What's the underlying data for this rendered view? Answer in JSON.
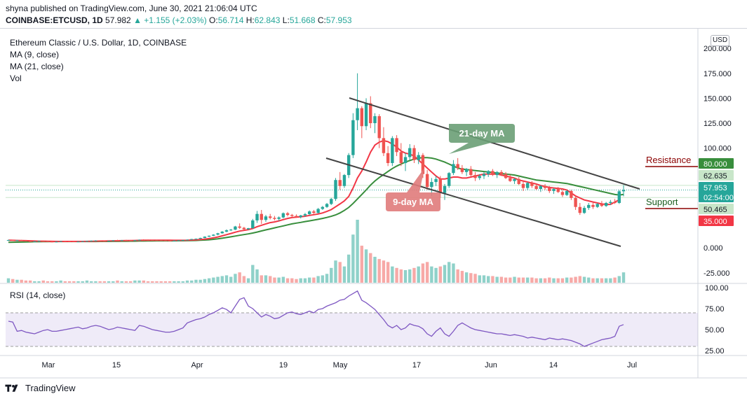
{
  "header": {
    "publish_line": "shyna published on TradingView.com, June 30, 2021 21:06:04 UTC",
    "symbol": "COINBASE:ETCUSD, 1D",
    "last": "57.982",
    "change": "▲ +1.155 (+2.03%)",
    "o_label": "O:",
    "o": "56.714",
    "h_label": "H:",
    "h": "62.843",
    "l_label": "L:",
    "l": "51.668",
    "c_label": "C:",
    "c": "57.953"
  },
  "legend": {
    "title": "Ethereum Classic / U.S. Dollar, 1D, COINBASE",
    "ma9": "MA (9, close)",
    "ma21": "MA (21, close)",
    "vol": "Vol"
  },
  "currency": "USD",
  "rsi_legend": "RSI (14, close)",
  "footer": {
    "brand": "TradingView"
  },
  "annotations": {
    "ma21_label": "21-day MA",
    "ma9_label": "9-day MA",
    "resistance": "Resistance",
    "support": "Support"
  },
  "colors": {
    "up": "#26a69a",
    "down": "#ef5350",
    "ma9": "#f23645",
    "ma21": "#388e3c",
    "rsi": "#7e57c2",
    "rsi_band": "#7e57c2",
    "ma21_box": "#6a9e76",
    "ma9_box": "#e07b7b",
    "resistance": "#8b0000",
    "support": "#1b5e20"
  },
  "chart_data": {
    "type": "candlestick",
    "price_axis": {
      "range": [
        -35,
        205
      ],
      "ticks": [
        "200.000",
        "175.000",
        "150.000",
        "125.000",
        "100.000",
        "75.000",
        "50.000",
        "25.000",
        "0.000",
        "-25.000"
      ]
    },
    "price_labels": [
      {
        "text": "80.000",
        "value": 80,
        "color": "#388e3c"
      },
      {
        "text": "62.635",
        "value": 62.635,
        "color": "#c8e6c9",
        "dark_text": true
      },
      {
        "text": "57.953",
        "value": 57.953,
        "color": "#26a69a"
      },
      {
        "text": "02:54:00",
        "value": 53.0,
        "color": "#26a69a"
      },
      {
        "text": "50.465",
        "value": 50.465,
        "color": "#c8e6c9",
        "dark_text": true
      },
      {
        "text": "35.000",
        "value": 35,
        "color": "#f23645"
      }
    ],
    "x_ticks": [
      "Mar",
      "15",
      "Apr",
      "19",
      "May",
      "17",
      "Jun",
      "14",
      "Jul"
    ],
    "rsi_axis": {
      "range": [
        20,
        105
      ],
      "ticks": [
        "100.00",
        "75.00",
        "50.00",
        "25.00"
      ],
      "band": [
        30,
        70
      ]
    },
    "ohlc": [
      [
        7.5,
        8.2,
        7.0,
        7.8
      ],
      [
        7.8,
        8.1,
        7.2,
        7.4
      ],
      [
        7.4,
        7.9,
        6.8,
        7.6
      ],
      [
        7.6,
        8.0,
        7.1,
        7.3
      ],
      [
        7.3,
        7.6,
        6.4,
        6.7
      ],
      [
        6.7,
        7.1,
        6.0,
        6.3
      ],
      [
        6.3,
        6.8,
        5.8,
        6.5
      ],
      [
        6.5,
        7.2,
        6.2,
        6.9
      ],
      [
        6.9,
        7.3,
        6.5,
        6.8
      ],
      [
        6.8,
        7.0,
        6.1,
        6.2
      ],
      [
        6.2,
        6.6,
        5.6,
        6.0
      ],
      [
        6.0,
        6.4,
        5.5,
        6.2
      ],
      [
        6.2,
        6.9,
        6.0,
        6.7
      ],
      [
        6.7,
        7.0,
        6.3,
        6.5
      ],
      [
        6.5,
        6.8,
        6.0,
        6.4
      ],
      [
        6.4,
        6.6,
        5.9,
        6.1
      ],
      [
        6.1,
        6.5,
        5.8,
        6.3
      ],
      [
        6.3,
        6.7,
        6.0,
        6.6
      ],
      [
        6.6,
        7.1,
        6.3,
        6.9
      ],
      [
        6.9,
        7.4,
        6.7,
        7.1
      ],
      [
        7.1,
        7.6,
        6.8,
        7.3
      ],
      [
        7.3,
        7.5,
        6.9,
        7.0
      ],
      [
        7.0,
        7.3,
        6.6,
        6.8
      ],
      [
        6.8,
        7.2,
        6.5,
        7.0
      ],
      [
        7.0,
        7.8,
        6.8,
        7.6
      ],
      [
        7.6,
        8.1,
        7.2,
        7.4
      ],
      [
        7.4,
        7.9,
        7.0,
        7.7
      ],
      [
        7.7,
        8.0,
        7.3,
        7.5
      ],
      [
        7.5,
        7.9,
        7.0,
        7.3
      ],
      [
        7.3,
        7.8,
        7.0,
        7.6
      ],
      [
        7.6,
        8.3,
        7.4,
        8.1
      ],
      [
        8.1,
        8.6,
        7.8,
        8.0
      ],
      [
        8.0,
        8.4,
        7.6,
        7.9
      ],
      [
        7.9,
        8.2,
        7.5,
        7.8
      ],
      [
        7.8,
        8.1,
        7.4,
        7.7
      ],
      [
        7.7,
        8.0,
        7.2,
        7.5
      ],
      [
        7.5,
        7.9,
        7.0,
        7.3
      ],
      [
        7.3,
        7.6,
        6.9,
        7.1
      ],
      [
        7.1,
        7.5,
        6.8,
        7.2
      ],
      [
        7.2,
        7.7,
        7.0,
        7.5
      ],
      [
        7.5,
        8.0,
        7.3,
        7.8
      ],
      [
        7.8,
        8.4,
        7.6,
        8.2
      ],
      [
        8.2,
        9.0,
        8.0,
        8.8
      ],
      [
        8.8,
        9.4,
        8.4,
        9.1
      ],
      [
        9.1,
        10.2,
        8.9,
        9.9
      ],
      [
        9.9,
        11.5,
        9.6,
        11.2
      ],
      [
        11.2,
        12.4,
        10.8,
        12.1
      ],
      [
        12.1,
        13.6,
        11.8,
        13.2
      ],
      [
        13.2,
        15.0,
        12.6,
        14.6
      ],
      [
        14.6,
        16.8,
        14.2,
        16.2
      ],
      [
        16.2,
        18.5,
        15.6,
        17.6
      ],
      [
        17.6,
        19.0,
        16.8,
        18.2
      ],
      [
        18.2,
        22.0,
        17.8,
        21.4
      ],
      [
        21.4,
        24.5,
        19.0,
        20.1
      ],
      [
        20.1,
        21.0,
        17.9,
        18.6
      ],
      [
        18.6,
        20.0,
        18.0,
        19.7
      ],
      [
        19.7,
        29.0,
        19.2,
        27.5
      ],
      [
        27.5,
        37.0,
        25.0,
        34.0
      ],
      [
        34.0,
        38.0,
        24.0,
        28.0
      ],
      [
        28.0,
        33.0,
        26.0,
        31.5
      ],
      [
        31.5,
        34.0,
        28.5,
        30.0
      ],
      [
        30.0,
        32.0,
        27.5,
        29.0
      ],
      [
        29.0,
        31.5,
        27.0,
        30.5
      ],
      [
        30.5,
        35.5,
        29.5,
        34.7
      ],
      [
        34.7,
        36.0,
        31.5,
        33.0
      ],
      [
        33.0,
        34.0,
        30.5,
        32.0
      ],
      [
        32.0,
        33.5,
        30.0,
        31.0
      ],
      [
        31.0,
        33.0,
        29.5,
        32.5
      ],
      [
        32.5,
        35.0,
        31.0,
        33.8
      ],
      [
        33.8,
        37.5,
        33.0,
        36.5
      ],
      [
        36.5,
        38.0,
        34.0,
        35.0
      ],
      [
        35.0,
        40.0,
        34.5,
        39.0
      ],
      [
        39.0,
        42.0,
        38.0,
        41.0
      ],
      [
        41.0,
        45.0,
        40.0,
        44.0
      ],
      [
        44.0,
        50.0,
        43.0,
        49.0
      ],
      [
        49.0,
        70.0,
        47.0,
        68.0
      ],
      [
        68.0,
        76.0,
        58.0,
        62.0
      ],
      [
        62.0,
        74.0,
        60.0,
        73.0
      ],
      [
        73.0,
        95.0,
        70.0,
        93.0
      ],
      [
        93.0,
        135.0,
        90.0,
        128.0
      ],
      [
        128.0,
        175.0,
        118.0,
        140.0
      ],
      [
        140.0,
        142.0,
        110.0,
        122.0
      ],
      [
        122.0,
        150.0,
        118.0,
        145.0
      ],
      [
        145.0,
        152.0,
        120.0,
        125.0
      ],
      [
        125.0,
        135.0,
        115.0,
        132.0
      ],
      [
        132.0,
        134.0,
        100.0,
        110.0
      ],
      [
        110.0,
        121.0,
        92.0,
        95.0
      ],
      [
        95.0,
        102.0,
        82.0,
        85.0
      ],
      [
        85.0,
        112.0,
        82.0,
        110.0
      ],
      [
        110.0,
        113.0,
        92.0,
        96.0
      ],
      [
        96.0,
        105.0,
        82.0,
        85.0
      ],
      [
        85.0,
        95.0,
        77.0,
        91.0
      ],
      [
        91.0,
        104.0,
        88.0,
        100.0
      ],
      [
        100.0,
        103.0,
        85.0,
        88.0
      ],
      [
        88.0,
        96.0,
        84.0,
        93.0
      ],
      [
        93.0,
        95.0,
        70.0,
        74.0
      ],
      [
        74.0,
        78.0,
        58.0,
        61.0
      ],
      [
        61.0,
        70.0,
        52.0,
        66.0
      ],
      [
        66.0,
        72.0,
        62.0,
        69.0
      ],
      [
        69.0,
        72.0,
        50.0,
        55.0
      ],
      [
        55.0,
        64.0,
        48.0,
        62.0
      ],
      [
        62.0,
        76.0,
        60.0,
        75.0
      ],
      [
        75.0,
        88.0,
        73.0,
        84.0
      ],
      [
        84.0,
        90.0,
        78.0,
        80.0
      ],
      [
        80.0,
        83.0,
        74.0,
        76.0
      ],
      [
        76.0,
        80.0,
        72.0,
        79.0
      ],
      [
        79.0,
        82.0,
        71.0,
        73.0
      ],
      [
        73.0,
        76.0,
        67.0,
        70.0
      ],
      [
        70.0,
        74.0,
        68.0,
        72.0
      ],
      [
        72.0,
        76.0,
        69.0,
        74.0
      ],
      [
        74.0,
        78.0,
        71.0,
        77.0
      ],
      [
        77.0,
        79.0,
        72.0,
        73.0
      ],
      [
        73.0,
        77.0,
        70.0,
        76.0
      ],
      [
        76.0,
        78.0,
        72.0,
        74.0
      ],
      [
        74.0,
        76.0,
        69.0,
        70.0
      ],
      [
        70.0,
        73.0,
        66.0,
        67.0
      ],
      [
        67.0,
        70.0,
        64.0,
        69.0
      ],
      [
        69.0,
        71.0,
        63.0,
        64.0
      ],
      [
        64.0,
        67.0,
        57.0,
        60.0
      ],
      [
        60.0,
        66.0,
        58.0,
        65.0
      ],
      [
        65.0,
        67.0,
        60.0,
        62.0
      ],
      [
        62.0,
        64.0,
        58.0,
        59.0
      ],
      [
        59.0,
        63.0,
        56.0,
        62.0
      ],
      [
        62.0,
        64.0,
        58.0,
        60.0
      ],
      [
        60.0,
        62.0,
        55.0,
        57.0
      ],
      [
        57.0,
        60.0,
        54.0,
        59.0
      ],
      [
        59.0,
        61.0,
        55.0,
        56.0
      ],
      [
        56.0,
        58.0,
        51.0,
        53.0
      ],
      [
        53.0,
        58.0,
        52.0,
        57.0
      ],
      [
        57.0,
        58.0,
        48.0,
        50.0
      ],
      [
        50.0,
        52.0,
        38.0,
        41.0
      ],
      [
        41.0,
        45.0,
        33.0,
        35.0
      ],
      [
        35.0,
        42.0,
        34.0,
        40.0
      ],
      [
        40.0,
        45.0,
        38.0,
        43.0
      ],
      [
        43.0,
        46.0,
        39.0,
        41.0
      ],
      [
        41.0,
        45.0,
        40.0,
        44.0
      ],
      [
        44.0,
        47.0,
        41.0,
        42.0
      ],
      [
        42.0,
        46.0,
        41.0,
        45.0
      ],
      [
        45.0,
        48.0,
        43.0,
        46.0
      ],
      [
        46.0,
        49.0,
        44.0,
        45.0
      ],
      [
        45.0,
        58.0,
        44.0,
        56.7
      ],
      [
        56.7,
        62.8,
        51.7,
        58.0
      ]
    ],
    "ma9": [
      7.6,
      7.5,
      7.4,
      7.3,
      7.2,
      7.0,
      6.8,
      6.7,
      6.7,
      6.6,
      6.5,
      6.4,
      6.4,
      6.4,
      6.4,
      6.4,
      6.4,
      6.4,
      6.5,
      6.6,
      6.7,
      6.8,
      6.8,
      6.9,
      7.0,
      7.1,
      7.2,
      7.3,
      7.3,
      7.4,
      7.5,
      7.6,
      7.7,
      7.7,
      7.7,
      7.7,
      7.7,
      7.6,
      7.5,
      7.5,
      7.5,
      7.6,
      7.8,
      8.0,
      8.3,
      8.7,
      9.3,
      10.0,
      10.9,
      12.0,
      13.2,
      14.4,
      15.7,
      16.8,
      17.5,
      18.2,
      19.4,
      21.2,
      22.6,
      24.0,
      25.3,
      26.0,
      27.0,
      28.3,
      29.5,
      30.3,
      30.8,
      31.2,
      31.7,
      32.5,
      33.2,
      33.9,
      35.0,
      36.5,
      38.3,
      41.2,
      44.0,
      47.0,
      51.5,
      60.0,
      70.0,
      77.0,
      86.0,
      96.0,
      103.0,
      106.0,
      107.5,
      106.5,
      104.0,
      101.0,
      97.0,
      95.0,
      94.0,
      92.0,
      88.0,
      84.0,
      80.0,
      76.0,
      72.0,
      69.0,
      69.0,
      70.0,
      71.0,
      71.0,
      70.0,
      70.0,
      71.0,
      72.0,
      73.0,
      74.0,
      74.0,
      74.0,
      74.0,
      73.0,
      72.0,
      71.0,
      70.0,
      68.0,
      67.0,
      66.0,
      65.0,
      64.0,
      62.5,
      61.5,
      60.5,
      60.0,
      59.5,
      59.0,
      58.0,
      55.0,
      52.0,
      50.0,
      48.0,
      47.0,
      46.0,
      45.0,
      44.0,
      43.5,
      43.5,
      46.0,
      48.0
    ],
    "ma21": [
      5.5,
      5.6,
      5.7,
      5.8,
      5.9,
      6.0,
      6.1,
      6.1,
      6.2,
      6.2,
      6.3,
      6.3,
      6.3,
      6.3,
      6.3,
      6.3,
      6.3,
      6.3,
      6.3,
      6.3,
      6.3,
      6.4,
      6.4,
      6.4,
      6.5,
      6.5,
      6.6,
      6.6,
      6.7,
      6.7,
      6.8,
      6.8,
      6.9,
      6.9,
      7.0,
      7.0,
      7.0,
      7.0,
      7.0,
      7.1,
      7.1,
      7.2,
      7.3,
      7.4,
      7.6,
      7.8,
      8.1,
      8.5,
      9.0,
      9.6,
      10.3,
      11.0,
      11.8,
      12.6,
      13.3,
      14.0,
      14.8,
      15.8,
      16.9,
      18.0,
      19.0,
      20.0,
      21.0,
      22.0,
      23.0,
      24.0,
      24.8,
      25.5,
      26.3,
      27.0,
      27.8,
      28.6,
      29.5,
      30.5,
      31.6,
      33.0,
      35.0,
      37.5,
      40.5,
      44.5,
      49.0,
      53.5,
      58.0,
      63.0,
      67.0,
      70.5,
      73.5,
      76.5,
      79.5,
      82.0,
      84.0,
      86.0,
      87.5,
      89.0,
      90.0,
      90.5,
      90.5,
      90.0,
      89.0,
      87.5,
      86.0,
      84.0,
      82.0,
      80.0,
      79.0,
      78.5,
      78.0,
      77.5,
      77.0,
      76.5,
      76.0,
      75.5,
      75.0,
      74.5,
      74.0,
      73.5,
      73.0,
      72.0,
      71.0,
      70.0,
      69.0,
      68.0,
      67.5,
      67.0,
      66.5,
      66.0,
      65.5,
      65.0,
      64.5,
      63.5,
      62.5,
      61.5,
      60.5,
      59.5,
      58.5,
      57.5,
      56.5,
      55.5,
      54.5,
      53.5,
      53.0,
      53.5
    ],
    "volume": [
      6,
      5,
      4,
      4,
      3,
      3,
      2,
      2,
      3,
      2,
      2,
      2,
      3,
      2,
      2,
      2,
      2,
      2,
      3,
      2,
      2,
      2,
      2,
      2,
      2,
      3,
      2,
      2,
      2,
      3,
      3,
      3,
      2,
      2,
      2,
      2,
      2,
      2,
      2,
      2,
      2,
      3,
      3,
      4,
      4,
      5,
      6,
      7,
      8,
      9,
      10,
      8,
      12,
      14,
      9,
      6,
      24,
      18,
      10,
      10,
      9,
      7,
      7,
      8,
      6,
      6,
      5,
      6,
      6,
      7,
      7,
      9,
      10,
      12,
      20,
      30,
      28,
      22,
      38,
      65,
      85,
      50,
      45,
      40,
      35,
      32,
      30,
      28,
      22,
      20,
      18,
      17,
      18,
      20,
      22,
      26,
      28,
      22,
      20,
      22,
      24,
      28,
      26,
      18,
      16,
      14,
      13,
      12,
      10,
      10,
      9,
      9,
      8,
      8,
      7,
      7,
      8,
      7,
      7,
      7,
      7,
      6,
      6,
      6,
      7,
      6,
      6,
      6,
      7,
      7,
      8,
      9,
      8,
      7,
      6,
      6,
      6,
      6,
      6,
      7,
      9,
      14
    ],
    "rsi": [
      60,
      59,
      48,
      49,
      47,
      46,
      45,
      47,
      49,
      50,
      48,
      48,
      49,
      50,
      51,
      52,
      53,
      51,
      52,
      54,
      55,
      54,
      52,
      50,
      51,
      53,
      52,
      51,
      50,
      49,
      55,
      54,
      52,
      50,
      49,
      48,
      47,
      47,
      48,
      50,
      52,
      58,
      60,
      62,
      63,
      65,
      68,
      70,
      73,
      76,
      74,
      70,
      78,
      86,
      88,
      78,
      75,
      70,
      65,
      68,
      66,
      63,
      64,
      67,
      70,
      71,
      69,
      68,
      70,
      72,
      70,
      74,
      75,
      78,
      80,
      82,
      85,
      86,
      90,
      93,
      96,
      85,
      82,
      78,
      74,
      68,
      62,
      55,
      52,
      55,
      50,
      52,
      57,
      55,
      54,
      51,
      45,
      42,
      48,
      52,
      45,
      42,
      48,
      55,
      58,
      55,
      52,
      50,
      49,
      48,
      47,
      46,
      45,
      45,
      44,
      43,
      44,
      43,
      42,
      40,
      41,
      40,
      39,
      38,
      40,
      39,
      38,
      39,
      38,
      37,
      35,
      33,
      30,
      32,
      34,
      36,
      38,
      39,
      40,
      42,
      54,
      56
    ]
  }
}
